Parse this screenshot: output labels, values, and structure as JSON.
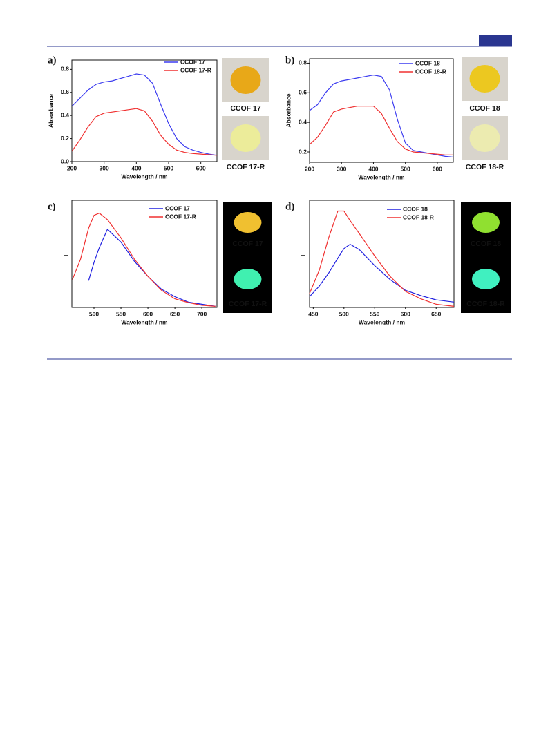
{
  "chart_data": [
    {
      "type": "line",
      "panel": "a)",
      "xlabel": "Wavelength / nm",
      "ylabel": "Absorbance",
      "xlim": [
        200,
        650
      ],
      "ylim": [
        0,
        0.88
      ],
      "xticks": [
        200,
        300,
        400,
        500,
        600
      ],
      "yticks": [
        {
          "value": 0,
          "label": "0.0"
        },
        0.2,
        0.4,
        0.6,
        0.8
      ],
      "x": [
        200,
        225,
        250,
        275,
        300,
        325,
        350,
        375,
        400,
        425,
        450,
        475,
        500,
        525,
        550,
        575,
        600,
        625,
        650
      ],
      "series": [
        {
          "name": "CCOF 17",
          "color": "#3b3bf0",
          "values": [
            0.48,
            0.55,
            0.62,
            0.67,
            0.69,
            0.7,
            0.72,
            0.74,
            0.76,
            0.75,
            0.68,
            0.5,
            0.33,
            0.2,
            0.13,
            0.1,
            0.08,
            0.065,
            0.055
          ]
        },
        {
          "name": "CCOF 17-R",
          "color": "#f03030",
          "values": [
            0.09,
            0.19,
            0.3,
            0.39,
            0.42,
            0.43,
            0.44,
            0.45,
            0.46,
            0.44,
            0.35,
            0.23,
            0.15,
            0.1,
            0.08,
            0.07,
            0.065,
            0.06,
            0.055
          ]
        }
      ],
      "legend": "upper right",
      "samples": [
        "CCOF 17",
        "CCOF 17-R"
      ]
    },
    {
      "type": "line",
      "panel": "b)",
      "xlabel": "Wavelength / nm",
      "ylabel": "Absorbance",
      "xlim": [
        200,
        650
      ],
      "ylim": [
        0.13,
        0.83
      ],
      "xticks": [
        200,
        300,
        400,
        500,
        600
      ],
      "yticks": [
        0.2,
        0.4,
        0.6,
        0.8
      ],
      "x": [
        200,
        225,
        250,
        275,
        300,
        325,
        350,
        375,
        400,
        425,
        450,
        475,
        500,
        525,
        550,
        575,
        600,
        625,
        650
      ],
      "series": [
        {
          "name": "CCOF 18",
          "color": "#3b3bf0",
          "values": [
            0.48,
            0.52,
            0.6,
            0.66,
            0.68,
            0.69,
            0.7,
            0.71,
            0.72,
            0.71,
            0.62,
            0.42,
            0.26,
            0.21,
            0.2,
            0.19,
            0.18,
            0.17,
            0.165
          ]
        },
        {
          "name": "CCOF 18-R",
          "color": "#f03030",
          "values": [
            0.25,
            0.3,
            0.38,
            0.47,
            0.49,
            0.5,
            0.51,
            0.51,
            0.51,
            0.46,
            0.36,
            0.27,
            0.22,
            0.2,
            0.195,
            0.19,
            0.185,
            0.18,
            0.18
          ]
        }
      ],
      "legend": "upper right",
      "samples": [
        "CCOF 18",
        "CCOF 18-R"
      ]
    },
    {
      "type": "line",
      "panel": "c)",
      "xlabel": "Wavelength / nm",
      "xlim": [
        459,
        728
      ],
      "ylim": [
        0,
        1
      ],
      "xticks": [
        500,
        550,
        600,
        650,
        700
      ],
      "x": [
        460,
        475,
        490,
        500,
        510,
        525,
        550,
        575,
        600,
        625,
        650,
        675,
        700,
        725
      ],
      "series": [
        {
          "name": "CCOF 17",
          "color": "#2020e0",
          "values": [
            null,
            null,
            0.25,
            0.42,
            0.56,
            0.73,
            0.61,
            0.43,
            0.29,
            0.17,
            0.1,
            0.05,
            0.03,
            0.01
          ]
        },
        {
          "name": "CCOF 17-R",
          "color": "#f03030",
          "values": [
            0.26,
            0.45,
            0.74,
            0.86,
            0.88,
            0.82,
            0.65,
            0.45,
            0.29,
            0.16,
            0.08,
            0.045,
            0.02,
            0.01
          ]
        }
      ],
      "legend": "upper right",
      "samples": [
        "CCOF 17",
        "CCOF 17-R"
      ]
    },
    {
      "type": "line",
      "panel": "d)",
      "xlabel": "Wavelength / nm",
      "xlim": [
        444,
        679
      ],
      "ylim": [
        0,
        1
      ],
      "xticks": [
        450,
        500,
        550,
        600,
        650
      ],
      "x": [
        444,
        460,
        475,
        490,
        500,
        510,
        525,
        550,
        575,
        600,
        625,
        650,
        679
      ],
      "series": [
        {
          "name": "CCOF 18",
          "color": "#2020e0",
          "values": [
            0.1,
            0.2,
            0.32,
            0.46,
            0.55,
            0.59,
            0.54,
            0.39,
            0.26,
            0.16,
            0.11,
            0.07,
            0.05
          ]
        },
        {
          "name": "CCOF 18-R",
          "color": "#f03030",
          "values": [
            0.13,
            0.35,
            0.65,
            0.9,
            0.9,
            0.81,
            0.69,
            0.48,
            0.29,
            0.15,
            0.08,
            0.03,
            0.01
          ]
        }
      ],
      "legend": "upper right",
      "samples": [
        "CCOF 18",
        "CCOF 18-R"
      ]
    }
  ]
}
